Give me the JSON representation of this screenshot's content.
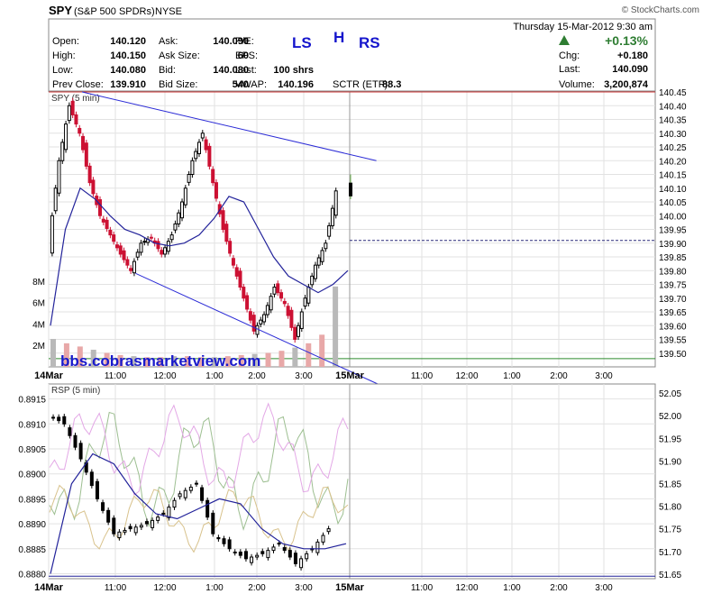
{
  "header": {
    "symbol": "SPY",
    "description": "(S&P 500 SPDRs)",
    "exchange": "NYSE",
    "watermark": "© StockCharts.com",
    "datetime": "Thursday  15-Mar-2012  9:30 am",
    "quote_rows": [
      {
        "k1": "Open:",
        "v1": "140.120",
        "k2": "Ask:",
        "v2": "140.090",
        "k3": "P/E:",
        "v3": ""
      },
      {
        "k1": "High:",
        "v1": "140.150",
        "k2": "Ask Size:",
        "v2": "60",
        "k3": "EPS:",
        "v3": ""
      },
      {
        "k1": "Low:",
        "v1": "140.080",
        "k2": "Bid:",
        "v2": "140.080",
        "k3": "Last:",
        "v3": "100 shrs"
      },
      {
        "k1": "Prev Close:",
        "v1": "139.910",
        "k2": "Bid Size:",
        "v2": "540",
        "k3": "VWAP:",
        "v3": "140.196"
      }
    ],
    "sctr_label": "SCTR (ETF):",
    "sctr_value": "88.3",
    "change_pct": "+0.13%",
    "change_label": "Chg:",
    "change_value": "+0.180",
    "last_label": "Last:",
    "last_value": "140.090",
    "volume_label": "Volume:",
    "volume_value": "3,200,874",
    "pattern_ls": "LS",
    "pattern_h": "H",
    "pattern_rs": "RS",
    "up_color": "#2e7d32",
    "pattern_color": "#1515cc"
  },
  "chart_data": [
    {
      "type": "candlestick",
      "title": "SPY (5 min)",
      "ylim": [
        139.45,
        140.45
      ],
      "yticks": [
        "140.45",
        "140.40",
        "140.35",
        "140.30",
        "140.25",
        "140.20",
        "140.15",
        "140.10",
        "140.05",
        "140.00",
        "139.95",
        "139.90",
        "139.85",
        "139.80",
        "139.75",
        "139.70",
        "139.65",
        "139.60",
        "139.55",
        "139.50"
      ],
      "volume_ticks": [
        "8M",
        "6M",
        "4M",
        "2M"
      ],
      "volume_ylim": [
        0,
        9000000
      ],
      "xticks": [
        "14Mar",
        "11:00",
        "12:00",
        "1:00",
        "2:00",
        "3:00",
        "15Mar",
        "11:00",
        "12:00",
        "1:00",
        "2:00",
        "3:00"
      ],
      "prev_close": 139.91,
      "watermark_text": "bbs.cobrasmarketview.com",
      "close_path": [
        139.9,
        140.2,
        140.4,
        140.3,
        140.12,
        140.0,
        139.93,
        139.86,
        139.8,
        139.9,
        139.92,
        139.86,
        139.93,
        140.05,
        140.2,
        140.3,
        140.12,
        139.95,
        139.82,
        139.7,
        139.58,
        139.64,
        139.74,
        139.68,
        139.55,
        139.7,
        139.82,
        139.9,
        140.09
      ],
      "close_points": 29,
      "ma_path": [
        139.6,
        139.95,
        140.1,
        140.06,
        140.0,
        139.95,
        139.93,
        139.9,
        139.89,
        139.9,
        139.93,
        139.99,
        140.07,
        140.05,
        139.95,
        139.85,
        139.78,
        139.75,
        139.72,
        139.75,
        139.8
      ],
      "ma_points": 21,
      "volume_path": [
        2.6,
        2.2,
        1.9,
        1.6,
        1.3,
        1.1,
        1.0,
        0.9,
        0.9,
        1.0,
        1.0,
        0.9,
        0.9,
        1.0,
        1.1,
        1.2,
        1.3,
        1.5,
        1.8,
        2.2,
        3.0,
        7.5
      ],
      "volume_unit_millions": true,
      "trendlines": [
        {
          "from": [
            0.1,
            140.45
          ],
          "to": [
            0.98,
            140.2
          ]
        },
        {
          "from": [
            0.26,
            139.79
          ],
          "to": [
            0.99,
            139.45
          ]
        }
      ],
      "next_day": {
        "open": 140.12,
        "high": 140.15,
        "low": 140.08,
        "close": 140.09
      }
    },
    {
      "type": "candlestick",
      "title": "RSP (5 min)",
      "ylim": [
        0.8879,
        0.8918
      ],
      "yticks": [
        "0.8915",
        "0.8910",
        "0.8905",
        "0.8900",
        "0.8895",
        "0.8890",
        "0.8885",
        "0.8880"
      ],
      "right_yticks": [
        "52.05",
        "52.00",
        "51.95",
        "51.90",
        "51.85",
        "51.80",
        "51.75",
        "51.70",
        "51.65"
      ],
      "right_ylim": [
        51.64,
        52.07
      ],
      "xticks": [
        "14Mar",
        "11:00",
        "12:00",
        "1:00",
        "2:00",
        "3:00",
        "15Mar",
        "11:00",
        "12:00",
        "1:00",
        "2:00",
        "3:00"
      ],
      "close_path": [
        0.8912,
        0.891,
        0.8903,
        0.8895,
        0.8888,
        0.8889,
        0.889,
        0.8892,
        0.8896,
        0.8898,
        0.8888,
        0.8885,
        0.8883,
        0.8884,
        0.8886,
        0.8882,
        0.8885,
        0.8889
      ],
      "close_points": 18,
      "ma_path": [
        0.888,
        0.8898,
        0.8904,
        0.8902,
        0.8896,
        0.8892,
        0.8891,
        0.8893,
        0.8895,
        0.8894,
        0.8889,
        0.8886,
        0.8885,
        0.8885,
        0.8886
      ],
      "ma_points": 15
    }
  ],
  "colors": {
    "up_candle": "#000000",
    "down_candle": "#cc1133",
    "spy_ma": "#22229a",
    "trendline": "#2b2bd6",
    "volume_up": "#e8a8a8",
    "volume_down": "#b9b9b9",
    "prevclose_line": "#cc3333",
    "rsp_overlay_green": "#9dbf91",
    "rsp_overlay_pink": "#e3a8e6",
    "rsp_overlay_tan": "#d8c28c"
  }
}
